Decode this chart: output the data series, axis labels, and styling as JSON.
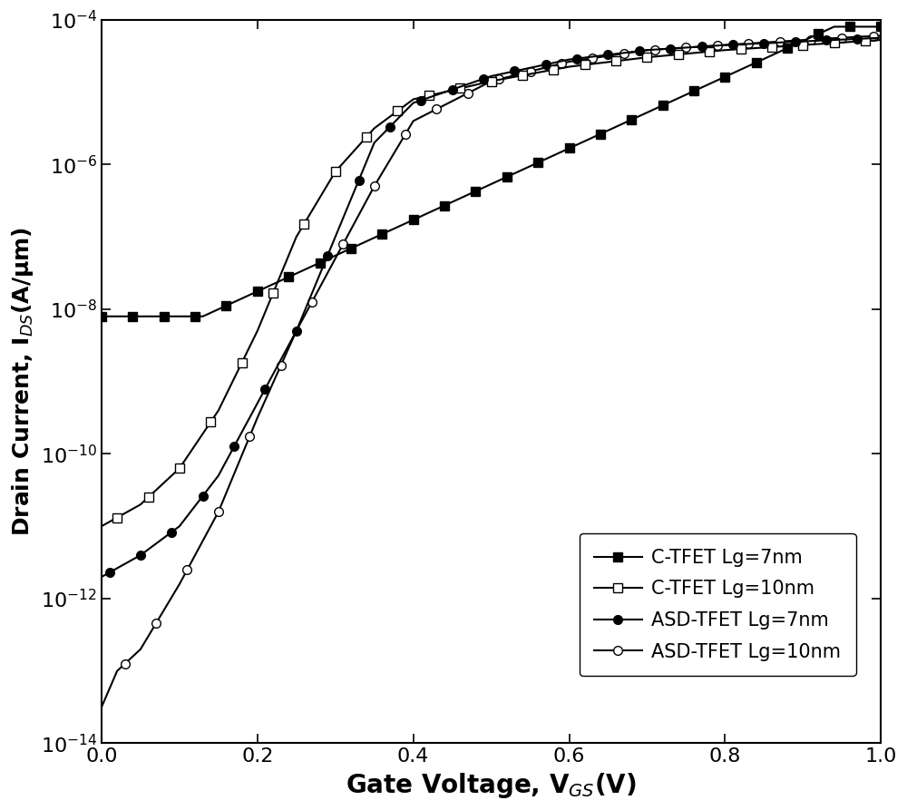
{
  "xlabel": "Gate Voltage, V$_{GS}$(V)",
  "ylabel": "Drain Current, I$_{DS}$(A/μm)",
  "xlim": [
    0.0,
    1.0
  ],
  "ylim_log": [
    -14,
    -4
  ],
  "xticks": [
    0.0,
    0.2,
    0.4,
    0.6,
    0.8,
    1.0
  ],
  "legend_labels": [
    "C-TFET Lg=7nm",
    "C-TFET Lg=10nm",
    "ASD-TFET Lg=7nm",
    "ASD-TFET Lg=10nm"
  ],
  "line_color": "#000000",
  "background_color": "#ffffff",
  "xlabel_fontsize": 20,
  "ylabel_fontsize": 18,
  "tick_fontsize": 16,
  "legend_fontsize": 15,
  "linewidth": 1.5,
  "markersize": 7
}
